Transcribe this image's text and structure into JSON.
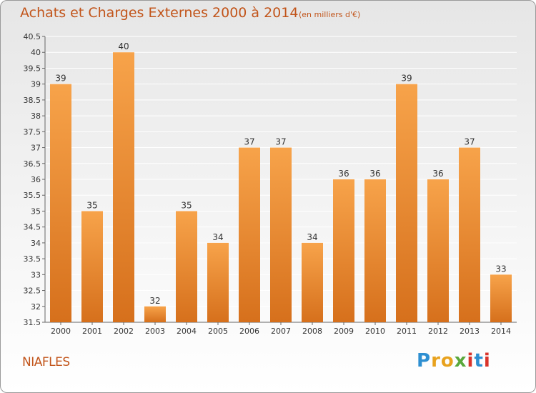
{
  "header": {
    "title": "Achats et Charges Externes 2000 à 2014",
    "subtitle": "(en milliers d'€)"
  },
  "footer": {
    "commune": "NIAFLES",
    "logo_letters": [
      "P",
      "r",
      "o",
      "x",
      "i",
      "t",
      "i"
    ],
    "logo_colors": [
      "#2e8fd1",
      "#e8a21e",
      "#e8a21e",
      "#5aa83c",
      "#d9342b",
      "#2e8fd1",
      "#d9342b"
    ]
  },
  "colors": {
    "bar_top": "#f7a34a",
    "bar_bottom": "#d6701c",
    "text_accent": "#c2551b",
    "axis_text": "#333333",
    "grid": "#ffffff"
  },
  "chart_data": {
    "type": "bar",
    "title": "Achats et Charges Externes 2000 à 2014",
    "subtitle": "(en milliers d'€)",
    "xlabel": "",
    "ylabel": "",
    "categories": [
      "2000",
      "2001",
      "2002",
      "2003",
      "2004",
      "2005",
      "2006",
      "2007",
      "2008",
      "2009",
      "2010",
      "2011",
      "2012",
      "2013",
      "2014"
    ],
    "values": [
      39,
      35,
      40,
      32,
      35,
      34,
      37,
      37,
      34,
      36,
      36,
      39,
      36,
      37,
      33
    ],
    "ylim": [
      31.5,
      40.5
    ],
    "yticks": [
      "31.5",
      "32",
      "32.5",
      "33",
      "33.5",
      "34",
      "34.5",
      "35",
      "35.5",
      "36",
      "36.5",
      "37",
      "37.5",
      "38",
      "38.5",
      "39",
      "39.5",
      "40",
      "40.5"
    ],
    "grid": true,
    "legend": "none"
  }
}
